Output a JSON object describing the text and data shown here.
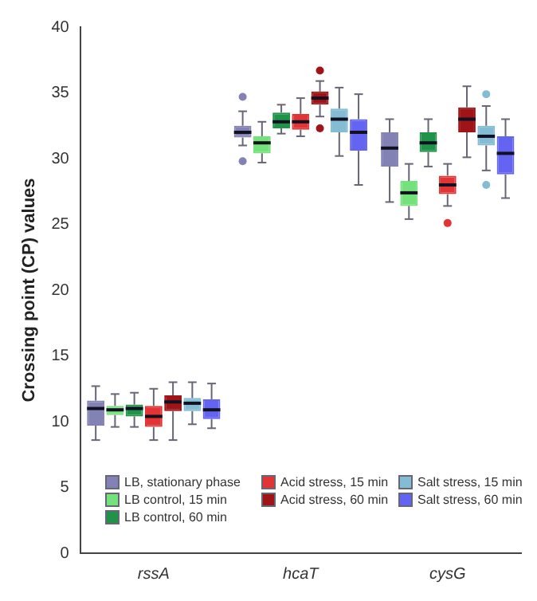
{
  "chart_data": {
    "type": "box",
    "ylabel": "Crossing point (CP) values",
    "categories": [
      "rssA",
      "hcaT",
      "cysG"
    ],
    "ylim": [
      0,
      40
    ],
    "yticks": [
      0,
      5,
      10,
      15,
      20,
      25,
      30,
      35,
      40
    ],
    "grid": false,
    "legend": "bottom",
    "series": [
      {
        "name": "LB, stationary phase",
        "color": "#8282b4",
        "boxes": [
          {
            "low": 8.6,
            "q1": 9.7,
            "median": 11.0,
            "q3": 11.6,
            "high": 12.7
          },
          {
            "low": 31.0,
            "q1": 31.6,
            "median": 32.0,
            "q3": 32.5,
            "high": 33.6,
            "outliers": [
              34.7,
              29.8
            ]
          },
          {
            "low": 26.7,
            "q1": 29.4,
            "median": 30.8,
            "q3": 32.0,
            "high": 33.0
          }
        ]
      },
      {
        "name": "LB control, 15 min",
        "color": "#74e27a",
        "boxes": [
          {
            "low": 9.6,
            "q1": 10.5,
            "median": 10.9,
            "q3": 11.2,
            "high": 12.1
          },
          {
            "low": 29.7,
            "q1": 30.4,
            "median": 31.2,
            "q3": 31.7,
            "high": 32.8
          },
          {
            "low": 25.4,
            "q1": 26.4,
            "median": 27.4,
            "q3": 28.3,
            "high": 29.6
          }
        ]
      },
      {
        "name": "LB control, 60 min",
        "color": "#1f9448",
        "boxes": [
          {
            "low": 9.6,
            "q1": 10.4,
            "median": 11.0,
            "q3": 11.3,
            "high": 12.2
          },
          {
            "low": 31.9,
            "q1": 32.3,
            "median": 32.8,
            "q3": 33.5,
            "high": 34.1
          },
          {
            "low": 29.4,
            "q1": 30.5,
            "median": 31.2,
            "q3": 32.0,
            "high": 33.0
          }
        ]
      },
      {
        "name": "Acid stress, 15 min",
        "color": "#e23434",
        "boxes": [
          {
            "low": 8.6,
            "q1": 9.6,
            "median": 10.4,
            "q3": 11.2,
            "high": 12.5
          },
          {
            "low": 31.7,
            "q1": 32.2,
            "median": 32.8,
            "q3": 33.4,
            "high": 34.6
          },
          {
            "low": 26.4,
            "q1": 27.3,
            "median": 28.0,
            "q3": 28.7,
            "high": 29.6,
            "outliers": [
              25.1
            ]
          }
        ]
      },
      {
        "name": "Acid stress, 60 min",
        "color": "#a01418",
        "boxes": [
          {
            "low": 8.6,
            "q1": 10.8,
            "median": 11.5,
            "q3": 12.0,
            "high": 13.0
          },
          {
            "low": 33.2,
            "q1": 34.1,
            "median": 34.6,
            "q3": 35.1,
            "high": 35.9,
            "outliers": [
              36.7,
              32.3
            ]
          },
          {
            "low": 30.1,
            "q1": 32.0,
            "median": 33.0,
            "q3": 33.9,
            "high": 35.5
          }
        ]
      },
      {
        "name": "Salt stress, 15 min",
        "color": "#84bcd4",
        "boxes": [
          {
            "low": 9.8,
            "q1": 10.8,
            "median": 11.4,
            "q3": 11.8,
            "high": 13.0
          },
          {
            "low": 30.2,
            "q1": 32.0,
            "median": 33.0,
            "q3": 33.8,
            "high": 35.4
          },
          {
            "low": 29.1,
            "q1": 31.0,
            "median": 31.7,
            "q3": 32.5,
            "high": 34.0,
            "outliers": [
              34.9,
              28.0
            ]
          }
        ]
      },
      {
        "name": "Salt stress, 60 min",
        "color": "#6464f2",
        "boxes": [
          {
            "low": 9.5,
            "q1": 10.2,
            "median": 10.9,
            "q3": 11.7,
            "high": 12.9
          },
          {
            "low": 28.0,
            "q1": 30.6,
            "median": 32.0,
            "q3": 33.0,
            "high": 34.9
          },
          {
            "low": 27.0,
            "q1": 28.8,
            "median": 30.4,
            "q3": 31.7,
            "high": 33.0
          }
        ]
      }
    ]
  }
}
